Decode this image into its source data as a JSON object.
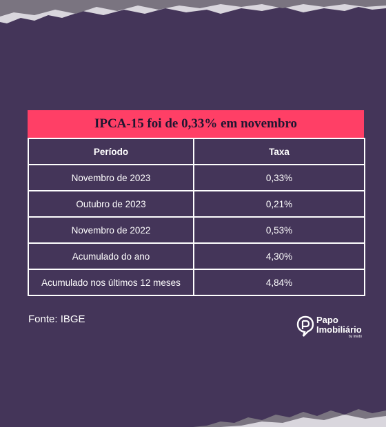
{
  "table": {
    "title": "IPCA-15 foi de 0,33% em novembro",
    "headers": [
      "Período",
      "Taxa"
    ],
    "rows": [
      [
        "Novembro de 2023",
        "0,33%"
      ],
      [
        "Outubro de 2023",
        "0,21%"
      ],
      [
        "Novembro de 2022",
        "0,53%"
      ],
      [
        "Acumulado do ano",
        "4,30%"
      ],
      [
        "Acumulado nos últimos 12 meses",
        "4,84%"
      ]
    ]
  },
  "footer": {
    "source": "Fonte: IBGE"
  },
  "brand": {
    "line1": "Papo",
    "line2": "Imobiliário",
    "byline": "by Imobi"
  },
  "colors": {
    "background": "#443559",
    "title_bar": "#ff3f66",
    "text": "#ffffff"
  }
}
